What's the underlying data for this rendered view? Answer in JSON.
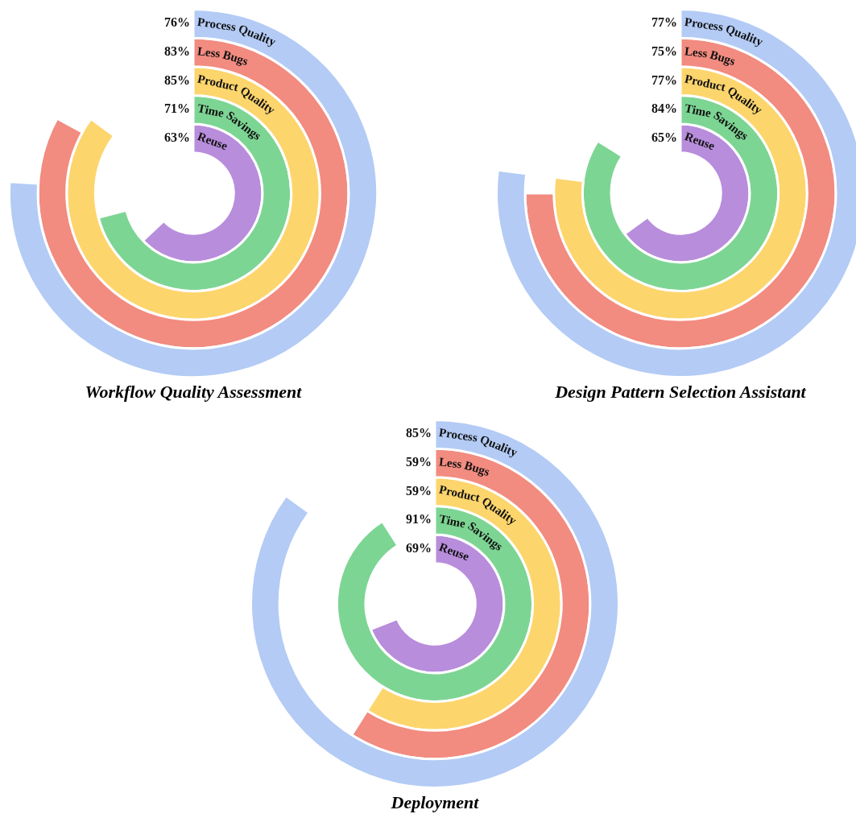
{
  "chart_data": [
    {
      "type": "other",
      "title": "Workflow Quality Assessment",
      "categories": [
        "Process Quality",
        "Less Bugs",
        "Product Quality",
        "Time Savings",
        "Reuse"
      ],
      "values": [
        76,
        83,
        85,
        71,
        63
      ],
      "value_labels": [
        "76%",
        "83%",
        "85%",
        "71%",
        "63%"
      ],
      "colors": [
        "#b3cbf5",
        "#f28b80",
        "#fcd56c",
        "#7dd594",
        "#b88ddc"
      ]
    },
    {
      "type": "other",
      "title": "Design Pattern Selection Assistant",
      "categories": [
        "Process Quality",
        "Less Bugs",
        "Product Quality",
        "Time Savings",
        "Reuse"
      ],
      "values": [
        77,
        75,
        77,
        84,
        65
      ],
      "value_labels": [
        "77%",
        "75%",
        "77%",
        "84%",
        "65%"
      ],
      "colors": [
        "#b3cbf5",
        "#f28b80",
        "#fcd56c",
        "#7dd594",
        "#b88ddc"
      ]
    },
    {
      "type": "other",
      "title": "Deployment",
      "categories": [
        "Process Quality",
        "Less Bugs",
        "Product Quality",
        "Time Savings",
        "Reuse"
      ],
      "values": [
        85,
        59,
        59,
        91,
        69
      ],
      "value_labels": [
        "85%",
        "59%",
        "59%",
        "91%",
        "69%"
      ],
      "colors": [
        "#b3cbf5",
        "#f28b80",
        "#fcd56c",
        "#7dd594",
        "#b88ddc"
      ]
    }
  ]
}
